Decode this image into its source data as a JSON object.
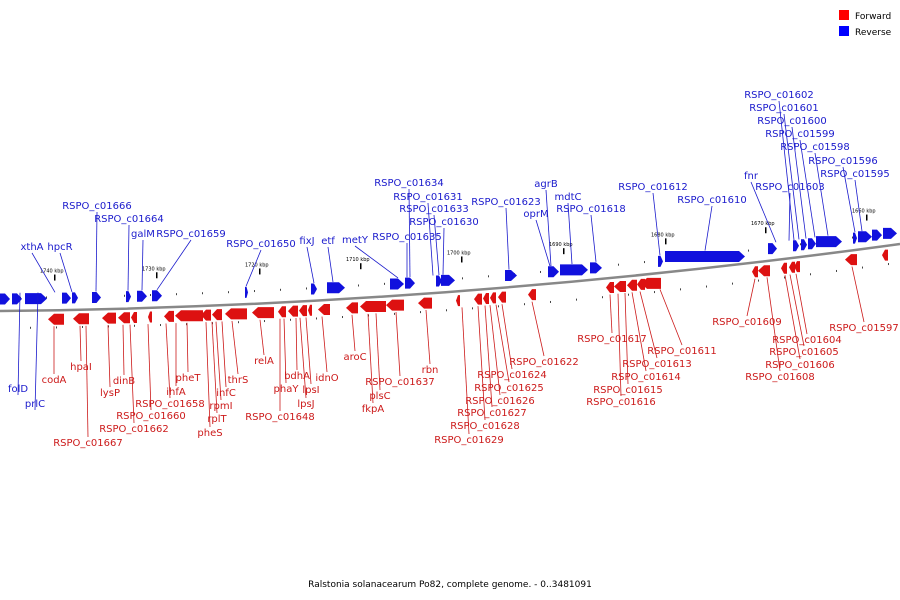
{
  "caption": "Ralstonia solanacearum Po82, complete genome. - 0..3481091",
  "legend": [
    {
      "label": "Forward",
      "color": "#ff0000"
    },
    {
      "label": "Reverse",
      "color": "#0000ff"
    }
  ],
  "colors": {
    "forward": "#dd1111",
    "reverse": "#1111dd",
    "axis": "#777777"
  },
  "ticks": [
    "1740 kbp",
    "1730 kbp",
    "1720 kbp",
    "1710 kbp",
    "1700 kbp",
    "1690 kbp",
    "1680 kbp",
    "1670 kbp",
    "1660 kbp"
  ],
  "reverse_labels": [
    "folD",
    "prlC",
    "xthA",
    "hpcR",
    "RSPO_c01666",
    "RSPO_c01664",
    "galM",
    "RSPO_c01659",
    "RSPO_c01650",
    "fixJ",
    "etf",
    "metY",
    "RSPO_c01635",
    "RSPO_c01634",
    "RSPO_c01631",
    "RSPO_c01633",
    "RSPO_c01630",
    "RSPO_c01623",
    "agrB",
    "oprM",
    "mdtC",
    "RSPO_c01618",
    "RSPO_c01612",
    "RSPO_c01610",
    "fnr",
    "RSPO_c01603",
    "RSPO_c01602",
    "RSPO_c01601",
    "RSPO_c01600",
    "RSPO_c01599",
    "RSPO_c01598",
    "RSPO_c01596",
    "RSPO_c01595"
  ],
  "forward_labels": [
    "codA",
    "hpaI",
    "RSPO_c01667",
    "lysP",
    "dinB",
    "RSPO_c01662",
    "RSPO_c01660",
    "RSPO_c01658",
    "ihfA",
    "pheT",
    "pheS",
    "rplT",
    "rpmI",
    "infC",
    "thrS",
    "relA",
    "phaY",
    "RSPO_c01648",
    "bdhA",
    "lpsI",
    "lpsJ",
    "idnO",
    "aroC",
    "fkpA",
    "plsC",
    "RSPO_c01637",
    "rbn",
    "RSPO_c01629",
    "RSPO_c01628",
    "RSPO_c01627",
    "RSPO_c01626",
    "RSPO_c01625",
    "RSPO_c01624",
    "RSPO_c01622",
    "RSPO_c01617",
    "RSPO_c01616",
    "RSPO_c01615",
    "RSPO_c01614",
    "RSPO_c01613",
    "RSPO_c01611",
    "RSPO_c01609",
    "RSPO_c01608",
    "RSPO_c01606",
    "RSPO_c01605",
    "RSPO_c01604",
    "RSPO_c01597"
  ]
}
